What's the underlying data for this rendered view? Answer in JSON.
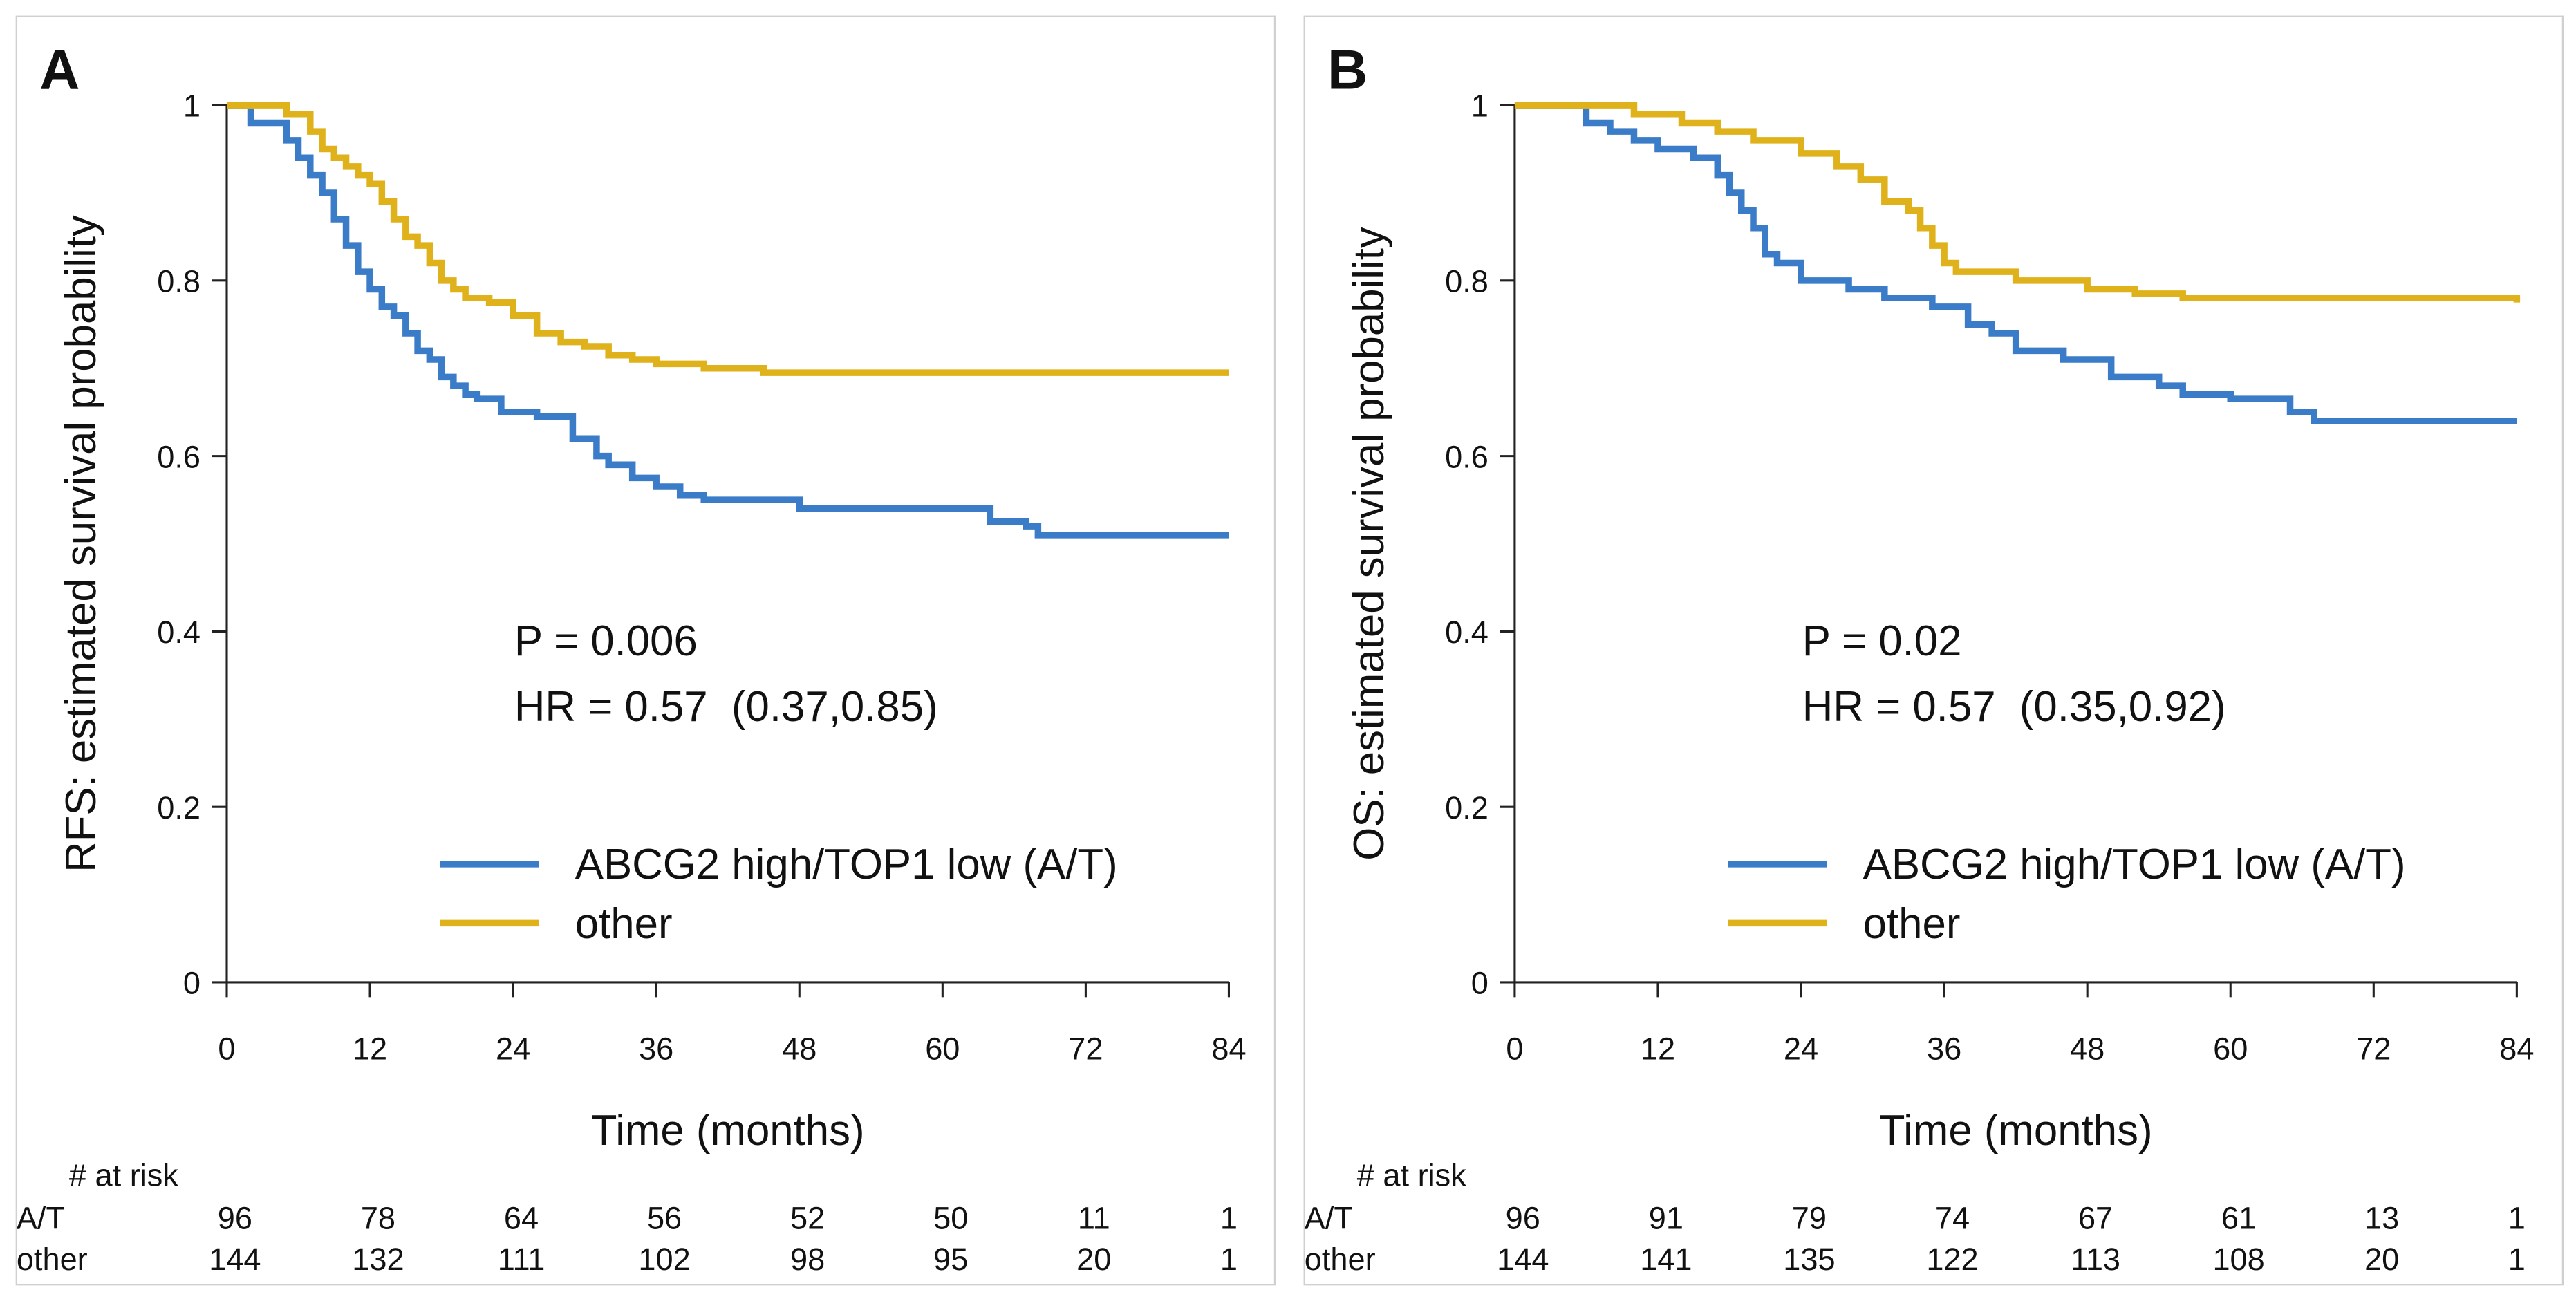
{
  "chart_data": [
    {
      "type": "step",
      "panel_label": "A",
      "ylabel": "RFS: estimated survival probability",
      "xlabel": "Time (months)",
      "annotations": [
        "P = 0.006",
        "HR = 0.57  (0.37,0.85)"
      ],
      "xlim": [
        0,
        84
      ],
      "xticks": [
        0,
        12,
        24,
        36,
        48,
        60,
        72,
        84
      ],
      "ylim": [
        0,
        1
      ],
      "yticks": [
        0,
        0.2,
        0.4,
        0.6,
        0.8,
        1
      ],
      "series": [
        {
          "name": "ABCG2 high/TOP1 low (A/T)",
          "color": "#3b7cc8",
          "x": [
            0,
            2,
            5,
            6,
            7,
            8,
            9,
            10,
            11,
            12,
            13,
            14,
            15,
            16,
            17,
            18,
            19,
            20,
            21,
            23,
            26,
            29,
            31,
            32,
            34,
            36,
            38,
            40,
            48,
            64,
            67,
            68,
            84
          ],
          "values": [
            1,
            0.98,
            0.96,
            0.94,
            0.92,
            0.9,
            0.87,
            0.84,
            0.81,
            0.79,
            0.77,
            0.76,
            0.74,
            0.72,
            0.71,
            0.69,
            0.68,
            0.67,
            0.665,
            0.65,
            0.645,
            0.62,
            0.6,
            0.59,
            0.575,
            0.565,
            0.555,
            0.55,
            0.54,
            0.525,
            0.52,
            0.51,
            0.51
          ]
        },
        {
          "name": "other",
          "color": "#dfb21b",
          "x": [
            0,
            5,
            7,
            8,
            9,
            10,
            11,
            12,
            13,
            14,
            15,
            16,
            17,
            18,
            19,
            20,
            22,
            24,
            26,
            28,
            30,
            32,
            34,
            36,
            40,
            45,
            84
          ],
          "values": [
            1,
            0.99,
            0.97,
            0.95,
            0.94,
            0.93,
            0.92,
            0.91,
            0.89,
            0.87,
            0.85,
            0.84,
            0.82,
            0.8,
            0.79,
            0.78,
            0.775,
            0.76,
            0.74,
            0.73,
            0.725,
            0.715,
            0.71,
            0.705,
            0.7,
            0.695,
            0.695
          ]
        }
      ],
      "risk_table": {
        "title": "# at risk",
        "rows": [
          {
            "name": "A/T",
            "values": [
              96,
              78,
              64,
              56,
              52,
              50,
              11,
              1
            ]
          },
          {
            "name": "other",
            "values": [
              144,
              132,
              111,
              102,
              98,
              95,
              20,
              1
            ]
          }
        ]
      }
    },
    {
      "type": "step",
      "panel_label": "B",
      "ylabel": "OS: estimated survival probability",
      "xlabel": "Time (months)",
      "annotations": [
        "P = 0.02",
        "HR = 0.57  (0.35,0.92)"
      ],
      "xlim": [
        0,
        84
      ],
      "xticks": [
        0,
        12,
        24,
        36,
        48,
        60,
        72,
        84
      ],
      "ylim": [
        0,
        1
      ],
      "yticks": [
        0,
        0.2,
        0.4,
        0.6,
        0.8,
        1
      ],
      "series": [
        {
          "name": "ABCG2 high/TOP1 low (A/T)",
          "color": "#3b7cc8",
          "x": [
            0,
            6,
            8,
            10,
            12,
            15,
            17,
            18,
            19,
            20,
            21,
            22,
            24,
            28,
            31,
            35,
            38,
            40,
            42,
            46,
            50,
            54,
            56,
            60,
            65,
            67,
            84
          ],
          "values": [
            1,
            0.98,
            0.97,
            0.96,
            0.95,
            0.94,
            0.92,
            0.9,
            0.88,
            0.86,
            0.83,
            0.82,
            0.8,
            0.79,
            0.78,
            0.77,
            0.75,
            0.74,
            0.72,
            0.71,
            0.69,
            0.68,
            0.67,
            0.665,
            0.65,
            0.64,
            0.64
          ]
        },
        {
          "name": "other",
          "color": "#dfb21b",
          "x": [
            0,
            10,
            14,
            17,
            20,
            24,
            27,
            29,
            31,
            33,
            34,
            35,
            36,
            37,
            42,
            48,
            52,
            56,
            84
          ],
          "values": [
            1,
            0.99,
            0.98,
            0.97,
            0.96,
            0.945,
            0.93,
            0.915,
            0.89,
            0.88,
            0.86,
            0.84,
            0.82,
            0.81,
            0.8,
            0.79,
            0.785,
            0.78,
            0.775
          ]
        }
      ],
      "risk_table": {
        "title": "# at risk",
        "rows": [
          {
            "name": "A/T",
            "values": [
              96,
              91,
              79,
              74,
              67,
              61,
              13,
              1
            ]
          },
          {
            "name": "other",
            "values": [
              144,
              141,
              135,
              122,
              113,
              108,
              20,
              1
            ]
          }
        ]
      }
    }
  ]
}
